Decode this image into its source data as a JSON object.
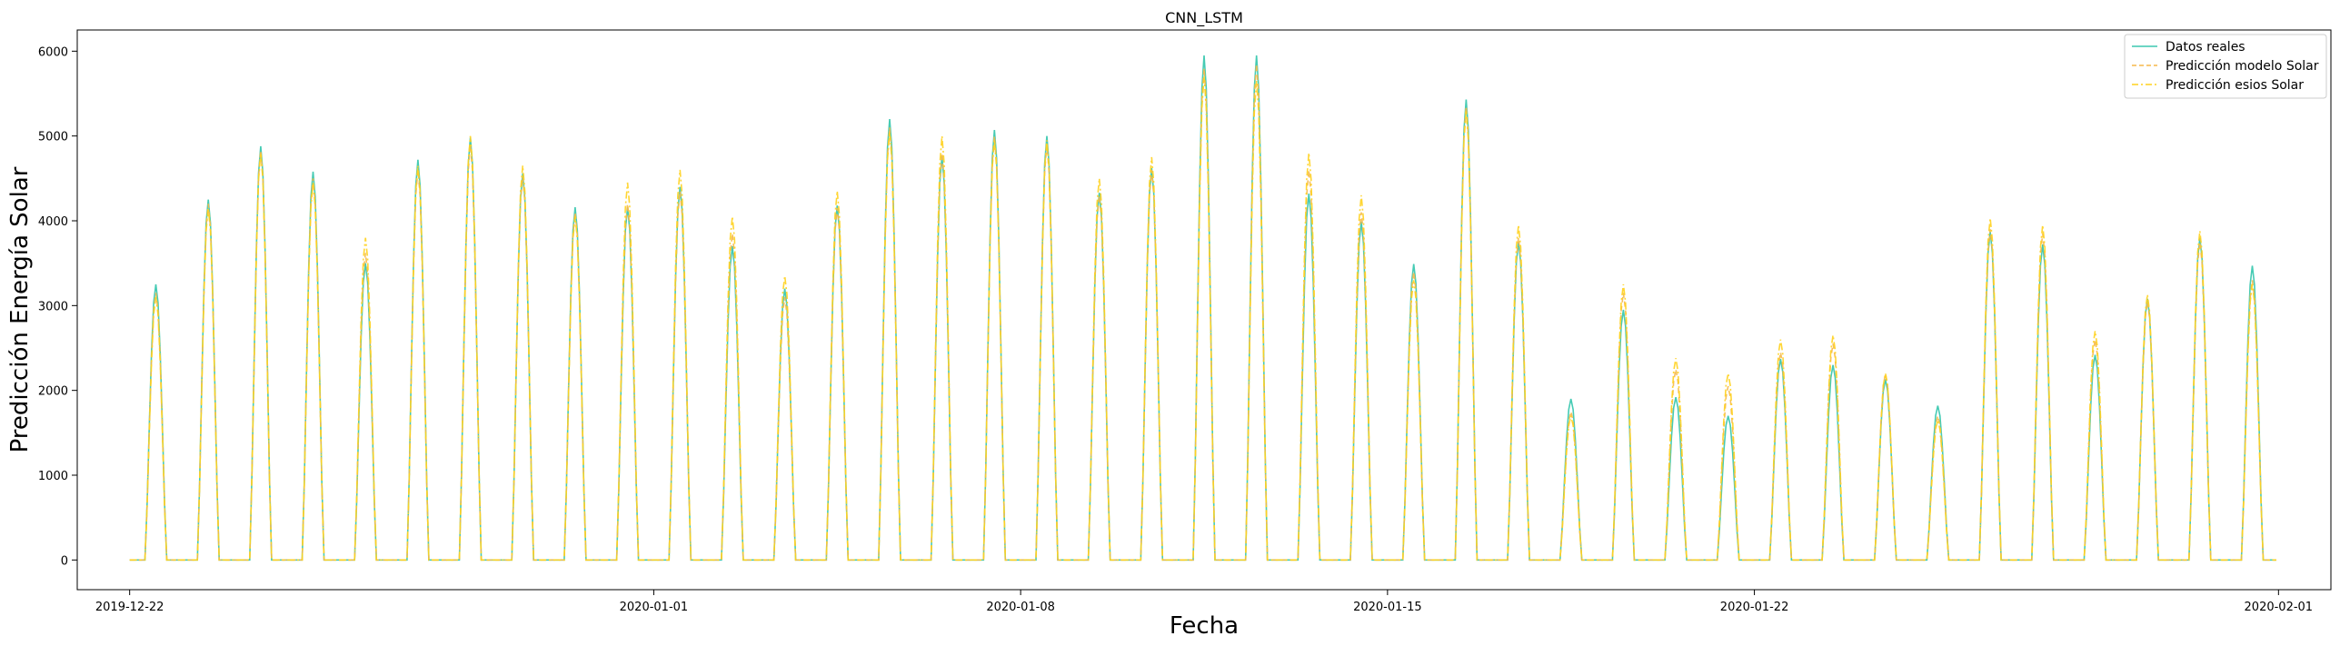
{
  "chart_data": {
    "type": "line",
    "title": "CNN_LSTM",
    "xlabel": "Fecha",
    "ylabel": "Predicción Energía Solar",
    "x_start": "2019-12-22",
    "x_end": "2020-01-31",
    "xlim": [
      "2019-12-21",
      "2020-02-02"
    ],
    "ylim": [
      -350,
      6250
    ],
    "xticks": [
      "2019-12-22",
      "2020-01-01",
      "2020-01-08",
      "2020-01-15",
      "2020-01-22",
      "2020-02-01"
    ],
    "yticks": [
      0,
      1000,
      2000,
      3000,
      4000,
      5000,
      6000
    ],
    "grid": false,
    "legend": "top-right",
    "series": [
      {
        "name": "Datos reales",
        "color": "#3cc8b0",
        "style": "solid",
        "daily_peaks": [
          3250,
          4250,
          4880,
          4580,
          3500,
          4720,
          4980,
          4560,
          4160,
          4160,
          4400,
          3700,
          3200,
          4180,
          5200,
          4760,
          5070,
          5000,
          4330,
          4620,
          5950,
          5950,
          4320,
          3990,
          3490,
          5430,
          3750,
          1900,
          2950,
          1920,
          1700,
          2370,
          2300,
          2130,
          1820,
          3870,
          3720,
          2420,
          3080,
          3800,
          3470
        ]
      },
      {
        "name": "Predicción modelo Solar",
        "color": "#f5b94a",
        "style": "dashed",
        "daily_peaks": [
          3150,
          4200,
          4830,
          4500,
          3620,
          4600,
          4900,
          4520,
          4100,
          4200,
          4350,
          3850,
          3100,
          4150,
          5100,
          4800,
          5000,
          4900,
          4300,
          4600,
          5800,
          5850,
          4600,
          4100,
          3400,
          5350,
          3800,
          1750,
          3150,
          2250,
          2050,
          2450,
          2550,
          2200,
          1700,
          3900,
          3850,
          2600,
          3050,
          3750,
          3300
        ]
      },
      {
        "name": "Predicción esios Solar",
        "color": "#ffd21e",
        "style": "dashdot",
        "daily_peaks": [
          3100,
          4150,
          4800,
          4450,
          3800,
          4650,
          5000,
          4650,
          4050,
          4450,
          4600,
          4050,
          3350,
          4350,
          5050,
          5000,
          4950,
          4950,
          4500,
          4750,
          5700,
          5650,
          4800,
          4300,
          3300,
          5300,
          3950,
          1700,
          3250,
          2380,
          2200,
          2600,
          2650,
          2200,
          1650,
          4030,
          3950,
          2700,
          3130,
          3880,
          3250
        ]
      }
    ]
  }
}
